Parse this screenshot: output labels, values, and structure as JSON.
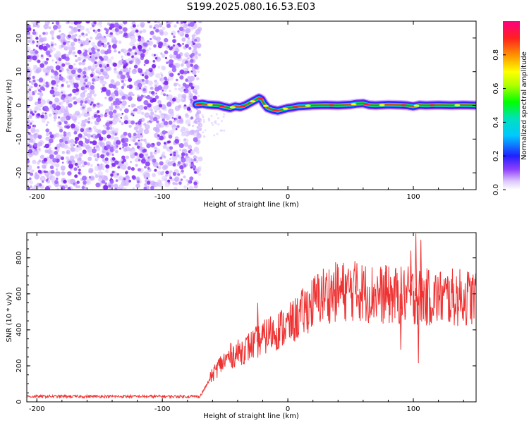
{
  "title": "S199.2025.080.16.53.E03",
  "chart_data": [
    {
      "type": "heatmap",
      "name": "spectrogram",
      "xlabel": "Height of straight line (km)",
      "ylabel": "Frequency (Hz)",
      "xlim": [
        -208,
        150
      ],
      "ylim": [
        -25,
        25
      ],
      "xticks": [
        -200,
        -100,
        0,
        100
      ],
      "yticks": [
        -20,
        -10,
        0,
        10,
        20
      ],
      "noise_region_x": [
        -208,
        -73
      ],
      "signal_start_x": -73,
      "ridge_x": [
        -73,
        -68,
        -64,
        -60,
        -55,
        -50,
        -46,
        -42,
        -38,
        -34,
        -30,
        -26,
        -23,
        -21,
        -19,
        -16,
        -12,
        -8,
        -4,
        0,
        4,
        8,
        12,
        20,
        30,
        40,
        50,
        55,
        60,
        65,
        70,
        80,
        90,
        95,
        100,
        105,
        110,
        120,
        130,
        140,
        150
      ],
      "ridge_y": [
        0.3,
        0.5,
        0.2,
        0.1,
        0.0,
        -0.5,
        -0.8,
        -0.3,
        -0.5,
        0.0,
        0.8,
        1.6,
        2.2,
        1.8,
        0.5,
        -0.8,
        -1.3,
        -1.6,
        -1.2,
        -0.8,
        -0.6,
        -0.3,
        -0.2,
        0.0,
        0.1,
        0.0,
        0.2,
        0.5,
        0.6,
        0.1,
        0.0,
        0.2,
        0.1,
        0.0,
        -0.3,
        0.1,
        0.0,
        0.1,
        0.0,
        0.1,
        0.0
      ]
    },
    {
      "type": "colorbar",
      "name": "amplitude-colorbar",
      "label": "Normalized spectral amplitude",
      "range": [
        0,
        1
      ],
      "ticks": [
        0.0,
        0.2,
        0.4,
        0.6,
        0.8
      ],
      "tick_labels": [
        "0.0",
        "0.2",
        "0.4",
        "0.6",
        "0.8"
      ]
    },
    {
      "type": "line",
      "name": "snr-line",
      "xlabel": "Height of straight line (km)",
      "ylabel": "SNR (10 * v/v)",
      "xlim": [
        -208,
        150
      ],
      "ylim": [
        0,
        940
      ],
      "xticks": [
        -200,
        -100,
        0,
        100
      ],
      "yticks": [
        0,
        200,
        400,
        600,
        800
      ],
      "color": "#ee3333",
      "envelope_x": [
        -208,
        -70,
        -60,
        -55,
        -50,
        -45,
        -40,
        -35,
        -30,
        -25,
        -20,
        -15,
        -10,
        -5,
        0,
        5,
        10,
        15,
        20,
        25,
        30,
        40,
        50,
        60,
        70,
        80,
        90,
        100,
        110,
        120,
        130,
        140,
        150
      ],
      "envelope_y": [
        30,
        30,
        150,
        200,
        230,
        260,
        270,
        290,
        310,
        330,
        350,
        380,
        390,
        410,
        420,
        450,
        480,
        520,
        550,
        580,
        600,
        610,
        620,
        610,
        600,
        590,
        590,
        590,
        580,
        580,
        580,
        580,
        580
      ],
      "spikes": [
        {
          "x": -24,
          "y": 550
        },
        {
          "x": 55,
          "y": 770
        },
        {
          "x": 78,
          "y": 760
        },
        {
          "x": 98,
          "y": 840
        },
        {
          "x": 102,
          "y": 935
        },
        {
          "x": 104,
          "y": 215
        },
        {
          "x": 106,
          "y": 900
        },
        {
          "x": 90,
          "y": 290
        }
      ]
    }
  ]
}
